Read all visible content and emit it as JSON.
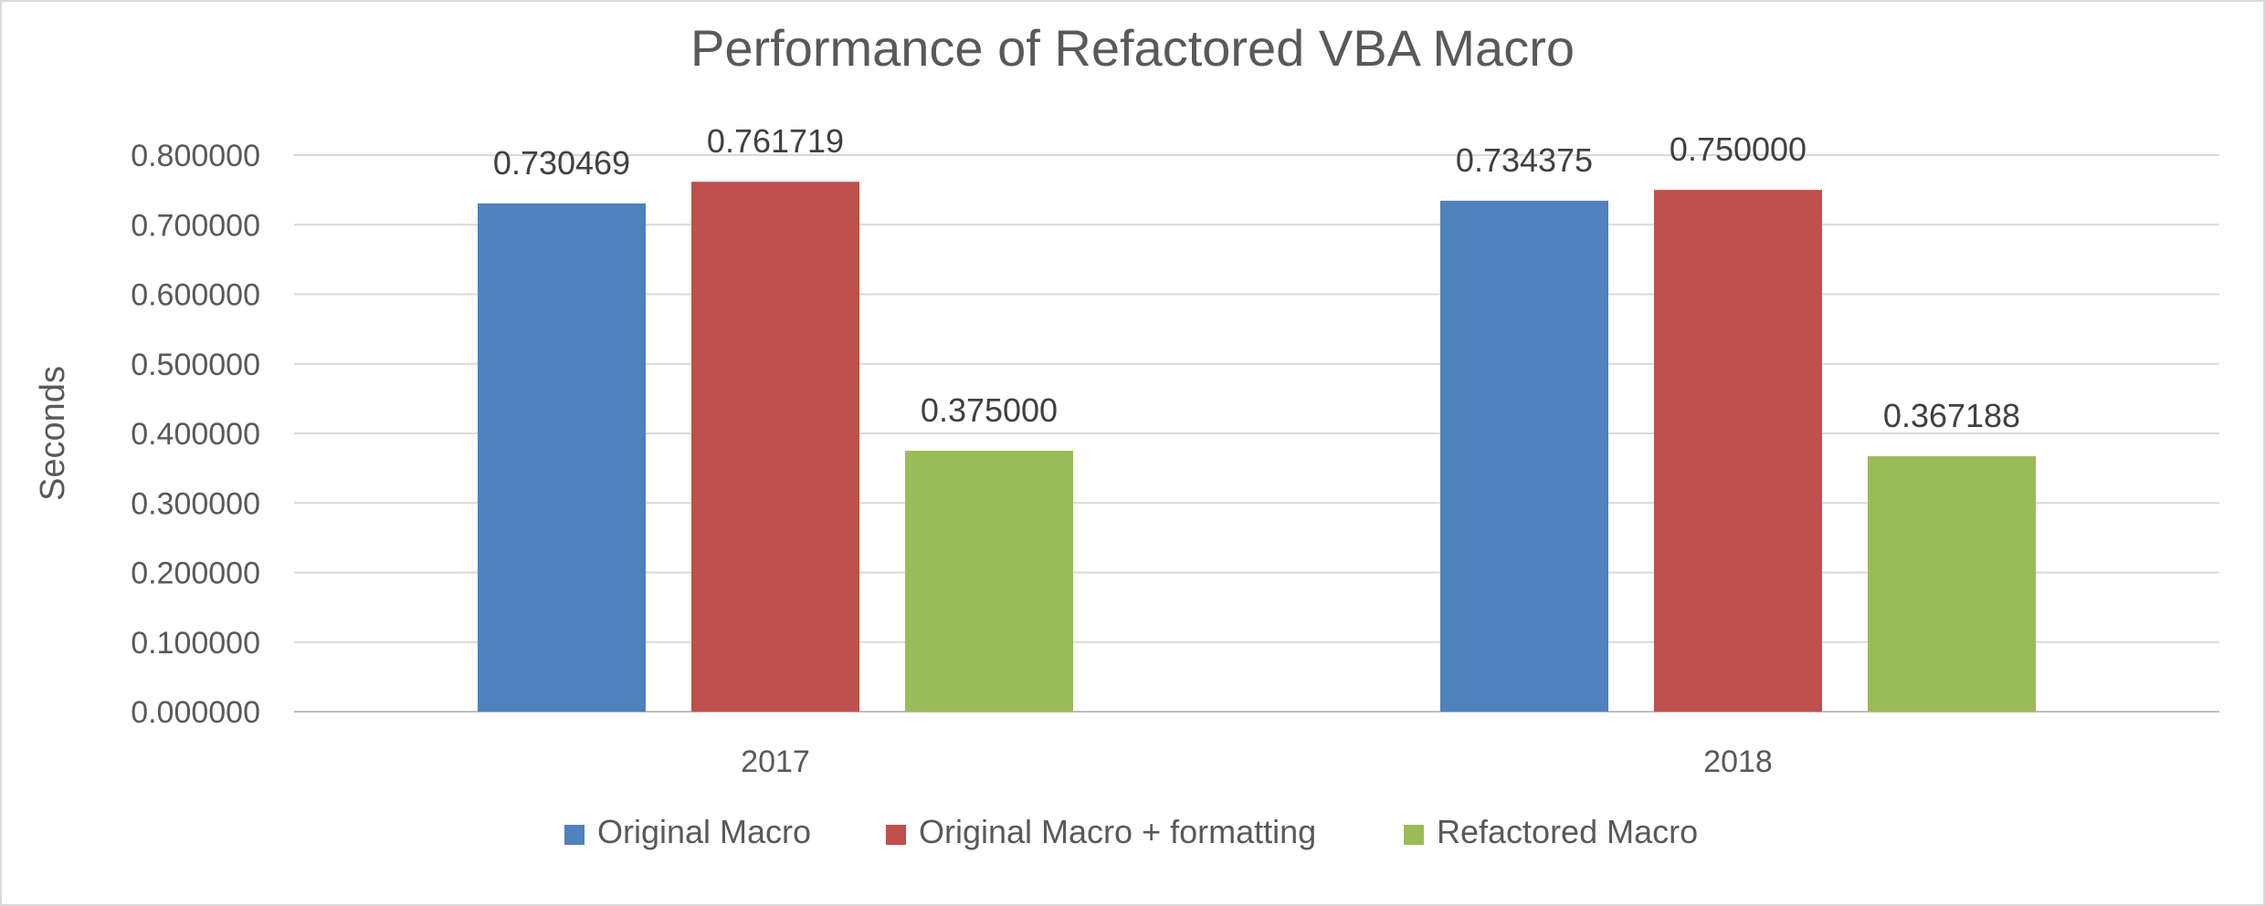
{
  "chart_data": {
    "type": "bar",
    "title": "Performance of Refactored VBA Macro",
    "xlabel": "",
    "ylabel": "Seconds",
    "categories": [
      "2017",
      "2018"
    ],
    "series": [
      {
        "name": "Original Macro",
        "values": [
          0.730469,
          0.734375
        ],
        "labels": [
          "0.730469",
          "0.734375"
        ],
        "color": "#4f81bd"
      },
      {
        "name": "Original Macro + formatting",
        "values": [
          0.761719,
          0.75
        ],
        "labels": [
          "0.761719",
          "0.750000"
        ],
        "color": "#c0504d"
      },
      {
        "name": "Refactored Macro",
        "values": [
          0.375,
          0.367188
        ],
        "labels": [
          "0.375000",
          "0.367188"
        ],
        "color": "#9bbb59"
      }
    ],
    "ylim": [
      0,
      0.8
    ],
    "y_ticks": [
      0,
      0.1,
      0.2,
      0.3,
      0.4,
      0.5,
      0.6,
      0.7,
      0.8
    ],
    "y_tick_labels": [
      "0.000000",
      "0.100000",
      "0.200000",
      "0.300000",
      "0.400000",
      "0.500000",
      "0.600000",
      "0.700000",
      "0.800000"
    ],
    "grid": true,
    "legend_position": "bottom"
  }
}
